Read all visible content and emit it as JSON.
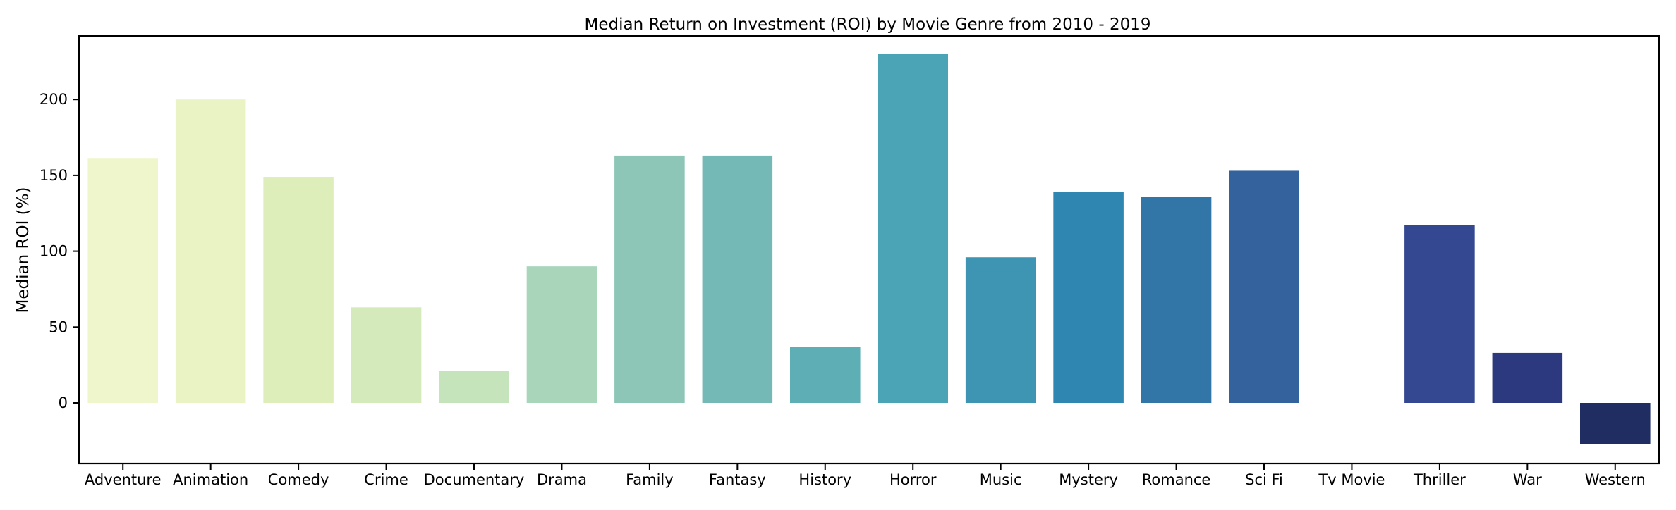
{
  "chart_data": {
    "type": "bar",
    "title": "Median Return on Investment (ROI) by Movie Genre from 2010 - 2019",
    "xlabel": "",
    "ylabel": "Median ROI (%)",
    "ylim": [
      -40,
      240
    ],
    "yticks": [
      0,
      50,
      100,
      150,
      200
    ],
    "grid": false,
    "categories": [
      "Adventure",
      "Animation",
      "Comedy",
      "Crime",
      "Documentary",
      "Drama",
      "Family",
      "Fantasy",
      "History",
      "Horror",
      "Music",
      "Mystery",
      "Romance",
      "Sci Fi",
      "Tv Movie",
      "Thriller",
      "War",
      "Western"
    ],
    "values": [
      161,
      200,
      149,
      63,
      21,
      90,
      163,
      163,
      37,
      230,
      96,
      139,
      136,
      153,
      0,
      117,
      33,
      -27
    ],
    "colors": [
      "#f0f6cc",
      "#e9f3c4",
      "#deeebb",
      "#d4eabb",
      "#c5e4bb",
      "#a9d6ba",
      "#8dc6b7",
      "#74b9b5",
      "#5eaeb6",
      "#4ba4b5",
      "#3e95b3",
      "#2f86b0",
      "#3176a6",
      "#33629c",
      "#354f93",
      "#344892",
      "#2c397f",
      "#1f2d63"
    ]
  }
}
